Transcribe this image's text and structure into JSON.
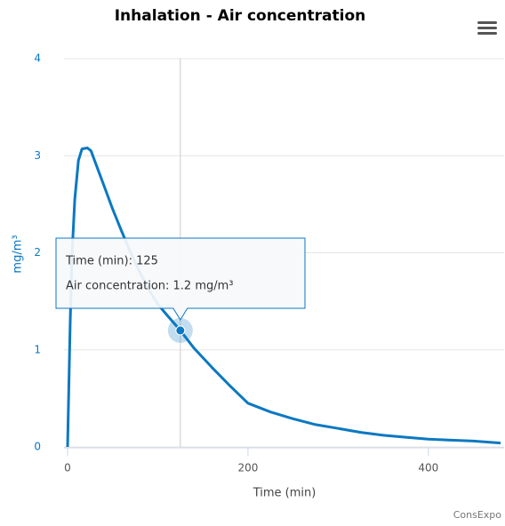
{
  "chart_data": {
    "type": "line",
    "title": "Inhalation - Air concentration",
    "x_label": "Time (min)",
    "y_label": "mg/m³",
    "x": [
      0,
      3,
      5,
      8,
      12,
      16,
      22,
      26,
      30,
      40,
      50,
      60,
      70,
      80,
      90,
      100,
      110,
      125,
      140,
      160,
      180,
      200,
      225,
      250,
      275,
      300,
      325,
      350,
      375,
      400,
      425,
      450,
      480
    ],
    "series": [
      {
        "name": "Air concentration",
        "color": "#0a78c2",
        "values": [
          0,
          1.3,
          2.0,
          2.55,
          2.95,
          3.07,
          3.08,
          3.05,
          2.95,
          2.7,
          2.45,
          2.22,
          2.0,
          1.8,
          1.62,
          1.47,
          1.36,
          1.2,
          1.02,
          0.82,
          0.63,
          0.45,
          0.36,
          0.29,
          0.23,
          0.19,
          0.15,
          0.12,
          0.1,
          0.08,
          0.07,
          0.06,
          0.04
        ]
      }
    ],
    "xlim": [
      0,
      480
    ],
    "xticks": [
      0,
      200,
      400
    ],
    "ylim": [
      0,
      4
    ],
    "yticks": [
      0,
      1,
      2,
      3,
      4
    ],
    "grid": true,
    "highlight_index": 17,
    "tooltip": [
      "Time (min): 125",
      "Air concentration: 1.2 mg/m³"
    ],
    "credits": "ConsExpo"
  }
}
